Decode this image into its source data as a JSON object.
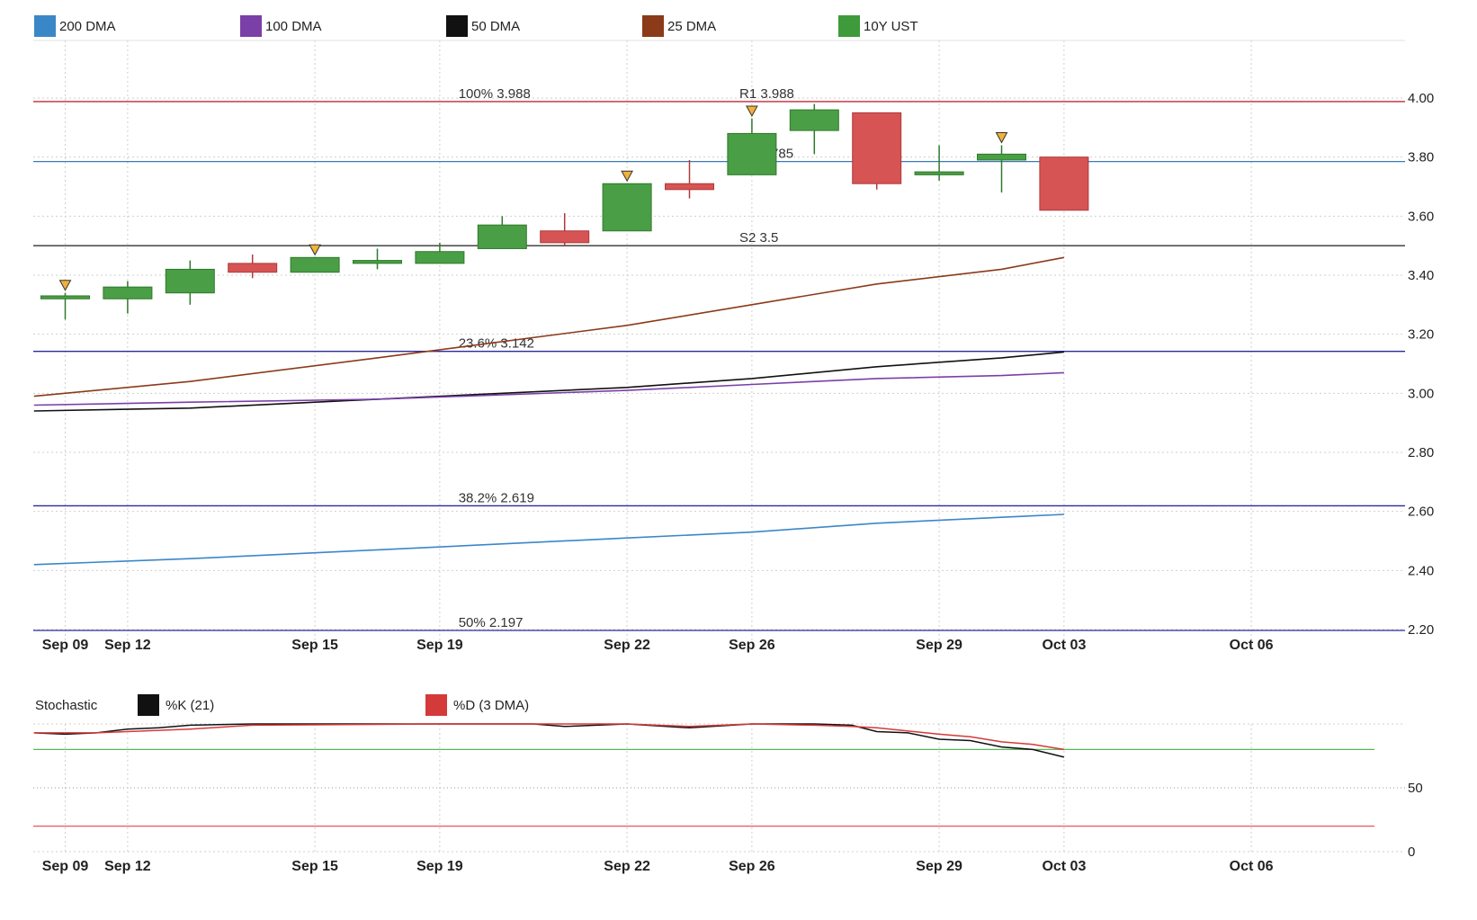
{
  "chart_data": [
    {
      "type": "candlestick",
      "series_name": "10Y UST",
      "legend": [
        {
          "name": "200 DMA",
          "color": "#3a87c8"
        },
        {
          "name": "100 DMA",
          "color": "#7b3fa8"
        },
        {
          "name": "50 DMA",
          "color": "#111111"
        },
        {
          "name": "25 DMA",
          "color": "#8b3a1a"
        },
        {
          "name": "10Y UST",
          "color": "#3e9a3a"
        }
      ],
      "x_ticks": [
        {
          "label": "Sep 09",
          "slot": 0
        },
        {
          "label": "Sep 12",
          "slot": 1
        },
        {
          "label": "Sep 15",
          "slot": 4
        },
        {
          "label": "Sep 19",
          "slot": 6
        },
        {
          "label": "Sep 22",
          "slot": 9
        },
        {
          "label": "Sep 26",
          "slot": 11
        },
        {
          "label": "Sep 29",
          "slot": 14
        },
        {
          "label": "Oct 03",
          "slot": 16
        },
        {
          "label": "Oct 06",
          "slot": 19
        }
      ],
      "ylim": [
        2.2,
        4.0
      ],
      "y_ticks": [
        "2.20",
        "2.40",
        "2.60",
        "2.80",
        "3.00",
        "3.20",
        "3.40",
        "3.60",
        "3.80",
        "4.00"
      ],
      "candles": [
        {
          "date": "Sep 09",
          "open": 3.32,
          "high": 3.34,
          "low": 3.25,
          "close": 3.33,
          "marker": true
        },
        {
          "date": "Sep 12",
          "open": 3.32,
          "high": 3.38,
          "low": 3.27,
          "close": 3.36,
          "marker": false
        },
        {
          "date": "Sep 13",
          "open": 3.34,
          "high": 3.45,
          "low": 3.3,
          "close": 3.42,
          "marker": false
        },
        {
          "date": "Sep 14",
          "open": 3.44,
          "high": 3.47,
          "low": 3.39,
          "close": 3.41,
          "marker": false
        },
        {
          "date": "Sep 15",
          "open": 3.41,
          "high": 3.46,
          "low": 3.41,
          "close": 3.46,
          "marker": true
        },
        {
          "date": "Sep 16",
          "open": 3.44,
          "high": 3.49,
          "low": 3.42,
          "close": 3.45,
          "marker": false
        },
        {
          "date": "Sep 19",
          "open": 3.44,
          "high": 3.51,
          "low": 3.44,
          "close": 3.48,
          "marker": false
        },
        {
          "date": "Sep 20",
          "open": 3.49,
          "high": 3.6,
          "low": 3.49,
          "close": 3.57,
          "marker": false
        },
        {
          "date": "Sep 21",
          "open": 3.55,
          "high": 3.61,
          "low": 3.5,
          "close": 3.51,
          "marker": false
        },
        {
          "date": "Sep 22",
          "open": 3.55,
          "high": 3.71,
          "low": 3.55,
          "close": 3.71,
          "marker": true
        },
        {
          "date": "Sep 23",
          "open": 3.71,
          "high": 3.79,
          "low": 3.66,
          "close": 3.69,
          "marker": false
        },
        {
          "date": "Sep 26",
          "open": 3.74,
          "high": 3.93,
          "low": 3.74,
          "close": 3.88,
          "marker": true
        },
        {
          "date": "Sep 27",
          "open": 3.89,
          "high": 3.98,
          "low": 3.81,
          "close": 3.96,
          "marker": false
        },
        {
          "date": "Sep 28",
          "open": 3.95,
          "high": 3.95,
          "low": 3.69,
          "close": 3.71,
          "marker": false
        },
        {
          "date": "Sep 29",
          "open": 3.74,
          "high": 3.84,
          "low": 3.72,
          "close": 3.75,
          "marker": false
        },
        {
          "date": "Sep 30",
          "open": 3.79,
          "high": 3.84,
          "low": 3.68,
          "close": 3.81,
          "marker": true
        },
        {
          "date": "Oct 03",
          "open": 3.8,
          "high": 3.8,
          "low": 3.62,
          "close": 3.62,
          "marker": false
        }
      ],
      "moving_averages": [
        {
          "name": "25 DMA",
          "color": "#8b3a1a",
          "points": [
            [
              -0.5,
              2.99
            ],
            [
              2,
              3.04
            ],
            [
              5,
              3.12
            ],
            [
              9,
              3.23
            ],
            [
              11,
              3.3
            ],
            [
              13,
              3.37
            ],
            [
              15,
              3.42
            ],
            [
              16,
              3.46
            ]
          ]
        },
        {
          "name": "50 DMA",
          "color": "#111111",
          "points": [
            [
              -0.5,
              2.94
            ],
            [
              2,
              2.95
            ],
            [
              5,
              2.98
            ],
            [
              9,
              3.02
            ],
            [
              11,
              3.05
            ],
            [
              13,
              3.09
            ],
            [
              15,
              3.12
            ],
            [
              16,
              3.14
            ]
          ]
        },
        {
          "name": "100 DMA",
          "color": "#7b3fa8",
          "points": [
            [
              -0.5,
              2.96
            ],
            [
              2,
              2.97
            ],
            [
              5,
              2.98
            ],
            [
              9,
              3.01
            ],
            [
              11,
              3.03
            ],
            [
              13,
              3.05
            ],
            [
              15,
              3.06
            ],
            [
              16,
              3.07
            ]
          ]
        },
        {
          "name": "200 DMA",
          "color": "#3a87c8",
          "points": [
            [
              -0.5,
              2.42
            ],
            [
              2,
              2.44
            ],
            [
              5,
              2.47
            ],
            [
              9,
              2.51
            ],
            [
              11,
              2.53
            ],
            [
              13,
              2.56
            ],
            [
              15,
              2.58
            ],
            [
              16,
              2.59
            ]
          ]
        }
      ],
      "levels": [
        {
          "value": 3.988,
          "color": "#c0283a",
          "labels": [
            {
              "text": "100% 3.988",
              "slot": 6.3
            },
            {
              "text": "R1 3.988",
              "slot": 10.8
            }
          ]
        },
        {
          "value": 3.785,
          "color": "#3a7ab8",
          "labels": [
            {
              "text": "S1 3.785",
              "slot": 10.8
            }
          ]
        },
        {
          "value": 3.5,
          "color": "#333333",
          "labels": [
            {
              "text": "S2 3.5",
              "slot": 10.8
            }
          ]
        },
        {
          "value": 3.142,
          "color": "#2a2a9a",
          "labels": [
            {
              "text": "23.6% 3.142",
              "slot": 6.3
            }
          ]
        },
        {
          "value": 2.619,
          "color": "#2a2a9a",
          "labels": [
            {
              "text": "38.2% 2.619",
              "slot": 6.3
            }
          ]
        },
        {
          "value": 2.197,
          "color": "#2a2a9a",
          "labels": [
            {
              "text": "50% 2.197",
              "slot": 6.3
            }
          ]
        }
      ]
    },
    {
      "type": "line",
      "title": "Stochastic",
      "legend": [
        {
          "name": "%K (21)",
          "color": "#111111"
        },
        {
          "name": "%D (3 DMA)",
          "color": "#d43a3a"
        }
      ],
      "ylim": [
        0,
        100
      ],
      "y_ticks": [
        "0",
        "50"
      ],
      "reference_lines": [
        {
          "value": 80,
          "color": "#5ab85a"
        },
        {
          "value": 20,
          "color": "#e05a5a"
        }
      ],
      "series": [
        {
          "name": "%K (21)",
          "color": "#111111",
          "points": [
            [
              -0.5,
              93
            ],
            [
              0,
              92
            ],
            [
              0.5,
              93
            ],
            [
              1,
              96
            ],
            [
              1.5,
              97
            ],
            [
              2,
              99
            ],
            [
              3,
              100
            ],
            [
              6,
              100
            ],
            [
              7.5,
              100
            ],
            [
              8,
              98
            ],
            [
              9,
              100
            ],
            [
              10,
              97
            ],
            [
              11,
              100
            ],
            [
              12,
              100
            ],
            [
              12.6,
              99
            ],
            [
              13,
              94
            ],
            [
              13.5,
              93
            ],
            [
              14,
              88
            ],
            [
              14.5,
              87
            ],
            [
              15,
              82
            ],
            [
              15.5,
              80
            ],
            [
              16,
              74
            ]
          ]
        },
        {
          "name": "%D (3 DMA)",
          "color": "#d43a3a",
          "points": [
            [
              -0.5,
              93
            ],
            [
              0,
              93
            ],
            [
              0.5,
              93
            ],
            [
              1,
              94
            ],
            [
              1.5,
              95
            ],
            [
              2,
              96
            ],
            [
              3,
              99
            ],
            [
              6,
              100
            ],
            [
              8,
              100
            ],
            [
              9,
              100
            ],
            [
              10,
              98
            ],
            [
              11,
              100
            ],
            [
              12,
              99
            ],
            [
              12.6,
              98
            ],
            [
              13,
              97
            ],
            [
              14,
              92
            ],
            [
              14.5,
              90
            ],
            [
              15,
              86
            ],
            [
              15.5,
              84
            ],
            [
              16,
              80
            ]
          ]
        }
      ],
      "x_ticks": [
        {
          "label": "Sep 09",
          "slot": 0
        },
        {
          "label": "Sep 12",
          "slot": 1
        },
        {
          "label": "Sep 15",
          "slot": 4
        },
        {
          "label": "Sep 19",
          "slot": 6
        },
        {
          "label": "Sep 22",
          "slot": 9
        },
        {
          "label": "Sep 26",
          "slot": 11
        },
        {
          "label": "Sep 29",
          "slot": 14
        },
        {
          "label": "Oct 03",
          "slot": 16
        },
        {
          "label": "Oct 06",
          "slot": 19
        }
      ]
    }
  ]
}
